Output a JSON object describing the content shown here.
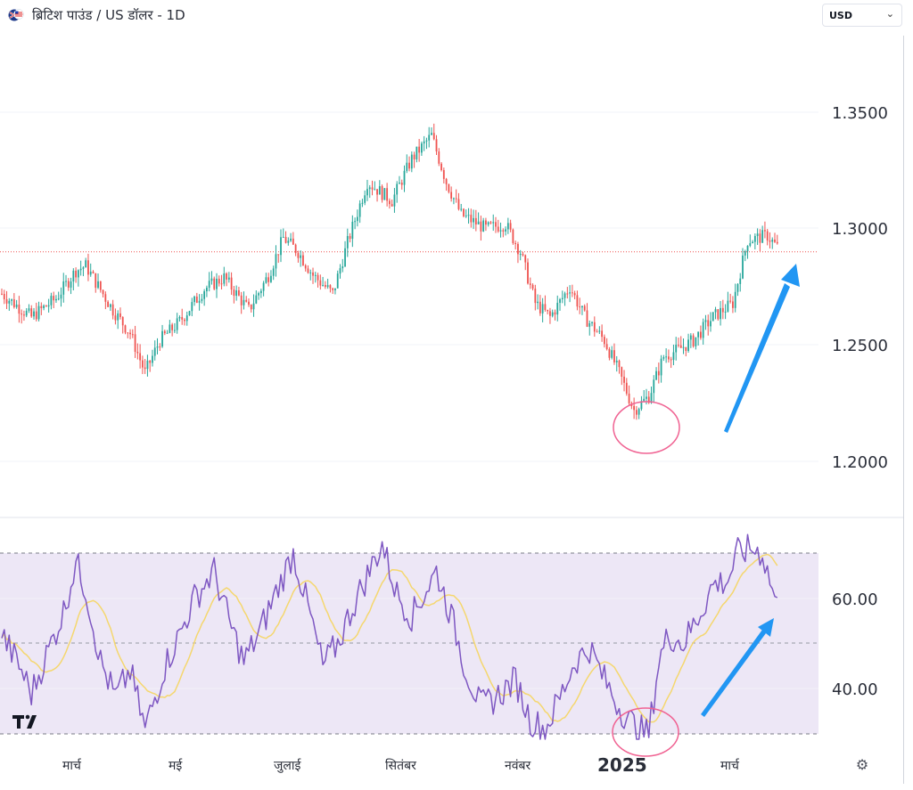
{
  "header": {
    "title": "ब्रिटिश पाउंड / US डॉलर - 1D",
    "currency": "USD",
    "flag_icon": "gbp-usd-flag-icon"
  },
  "colors": {
    "up": "#26a69a",
    "down": "#ef5350",
    "rsi_line": "#7e57c2",
    "rsi_ma": "#f5d76e",
    "rsi_band": "#ede7f6",
    "arrow": "#2196f3",
    "circle": "#f06292",
    "price_line": "#ef5350"
  },
  "chart_data": [
    {
      "type": "candlestick",
      "title": "ब्रिटिश पाउंड / US डॉलर - 1D",
      "y_ticks": [
        "1.3500",
        "1.3000",
        "1.2500",
        "1.2000"
      ],
      "ylim": [
        1.18,
        1.362
      ],
      "current_price": 1.29,
      "x_months": [
        "मार्च",
        "मई",
        "जुलाई",
        "सितंबर",
        "नवंबर",
        "2025",
        "मार्च"
      ],
      "anchors": [
        [
          0,
          1.272
        ],
        [
          12,
          1.262
        ],
        [
          22,
          1.27
        ],
        [
          30,
          1.282
        ],
        [
          34,
          1.284
        ],
        [
          45,
          1.265
        ],
        [
          52,
          1.255
        ],
        [
          58,
          1.238
        ],
        [
          64,
          1.252
        ],
        [
          72,
          1.26
        ],
        [
          82,
          1.274
        ],
        [
          90,
          1.279
        ],
        [
          100,
          1.265
        ],
        [
          108,
          1.28
        ],
        [
          114,
          1.296
        ],
        [
          120,
          1.29
        ],
        [
          126,
          1.28
        ],
        [
          134,
          1.272
        ],
        [
          140,
          1.294
        ],
        [
          148,
          1.32
        ],
        [
          158,
          1.312
        ],
        [
          166,
          1.33
        ],
        [
          174,
          1.34
        ],
        [
          180,
          1.32
        ],
        [
          186,
          1.306
        ],
        [
          196,
          1.3
        ],
        [
          204,
          1.302
        ],
        [
          210,
          1.29
        ],
        [
          216,
          1.268
        ],
        [
          222,
          1.262
        ],
        [
          230,
          1.275
        ],
        [
          236,
          1.262
        ],
        [
          244,
          1.252
        ],
        [
          250,
          1.238
        ],
        [
          256,
          1.222
        ],
        [
          262,
          1.228
        ],
        [
          268,
          1.245
        ],
        [
          274,
          1.248
        ],
        [
          280,
          1.252
        ],
        [
          288,
          1.262
        ],
        [
          296,
          1.268
        ],
        [
          302,
          1.295
        ],
        [
          310,
          1.297
        ],
        [
          314,
          1.292
        ]
      ],
      "annotations": {
        "low_circle": {
          "label": ""
        },
        "uptrend_arrow": {
          "label": ""
        }
      }
    },
    {
      "type": "line",
      "title": "",
      "y_ticks": [
        "60.00",
        "40.00"
      ],
      "ylim": [
        25,
        78
      ],
      "band": [
        30,
        70
      ],
      "midline": 50,
      "anchors": [
        [
          0,
          52
        ],
        [
          8,
          44
        ],
        [
          12,
          39
        ],
        [
          20,
          50
        ],
        [
          25,
          57
        ],
        [
          30,
          68
        ],
        [
          34,
          62
        ],
        [
          40,
          46
        ],
        [
          46,
          38
        ],
        [
          52,
          44
        ],
        [
          58,
          31
        ],
        [
          62,
          38
        ],
        [
          66,
          45
        ],
        [
          72,
          52
        ],
        [
          78,
          60
        ],
        [
          86,
          66
        ],
        [
          92,
          55
        ],
        [
          98,
          46
        ],
        [
          104,
          52
        ],
        [
          110,
          60
        ],
        [
          118,
          70
        ],
        [
          124,
          58
        ],
        [
          130,
          45
        ],
        [
          136,
          50
        ],
        [
          142,
          58
        ],
        [
          148,
          65
        ],
        [
          154,
          72
        ],
        [
          160,
          61
        ],
        [
          166,
          56
        ],
        [
          172,
          62
        ],
        [
          176,
          66
        ],
        [
          182,
          56
        ],
        [
          188,
          44
        ],
        [
          194,
          36
        ],
        [
          200,
          38
        ],
        [
          208,
          42
        ],
        [
          214,
          33
        ],
        [
          220,
          31
        ],
        [
          226,
          38
        ],
        [
          232,
          46
        ],
        [
          238,
          49
        ],
        [
          244,
          42
        ],
        [
          250,
          36
        ],
        [
          254,
          33
        ],
        [
          258,
          31
        ],
        [
          262,
          30
        ],
        [
          266,
          46
        ],
        [
          270,
          52
        ],
        [
          276,
          50
        ],
        [
          282,
          56
        ],
        [
          288,
          63
        ],
        [
          294,
          64
        ],
        [
          298,
          70
        ],
        [
          304,
          71
        ],
        [
          308,
          70
        ],
        [
          312,
          62
        ],
        [
          314,
          58
        ]
      ]
    }
  ]
}
